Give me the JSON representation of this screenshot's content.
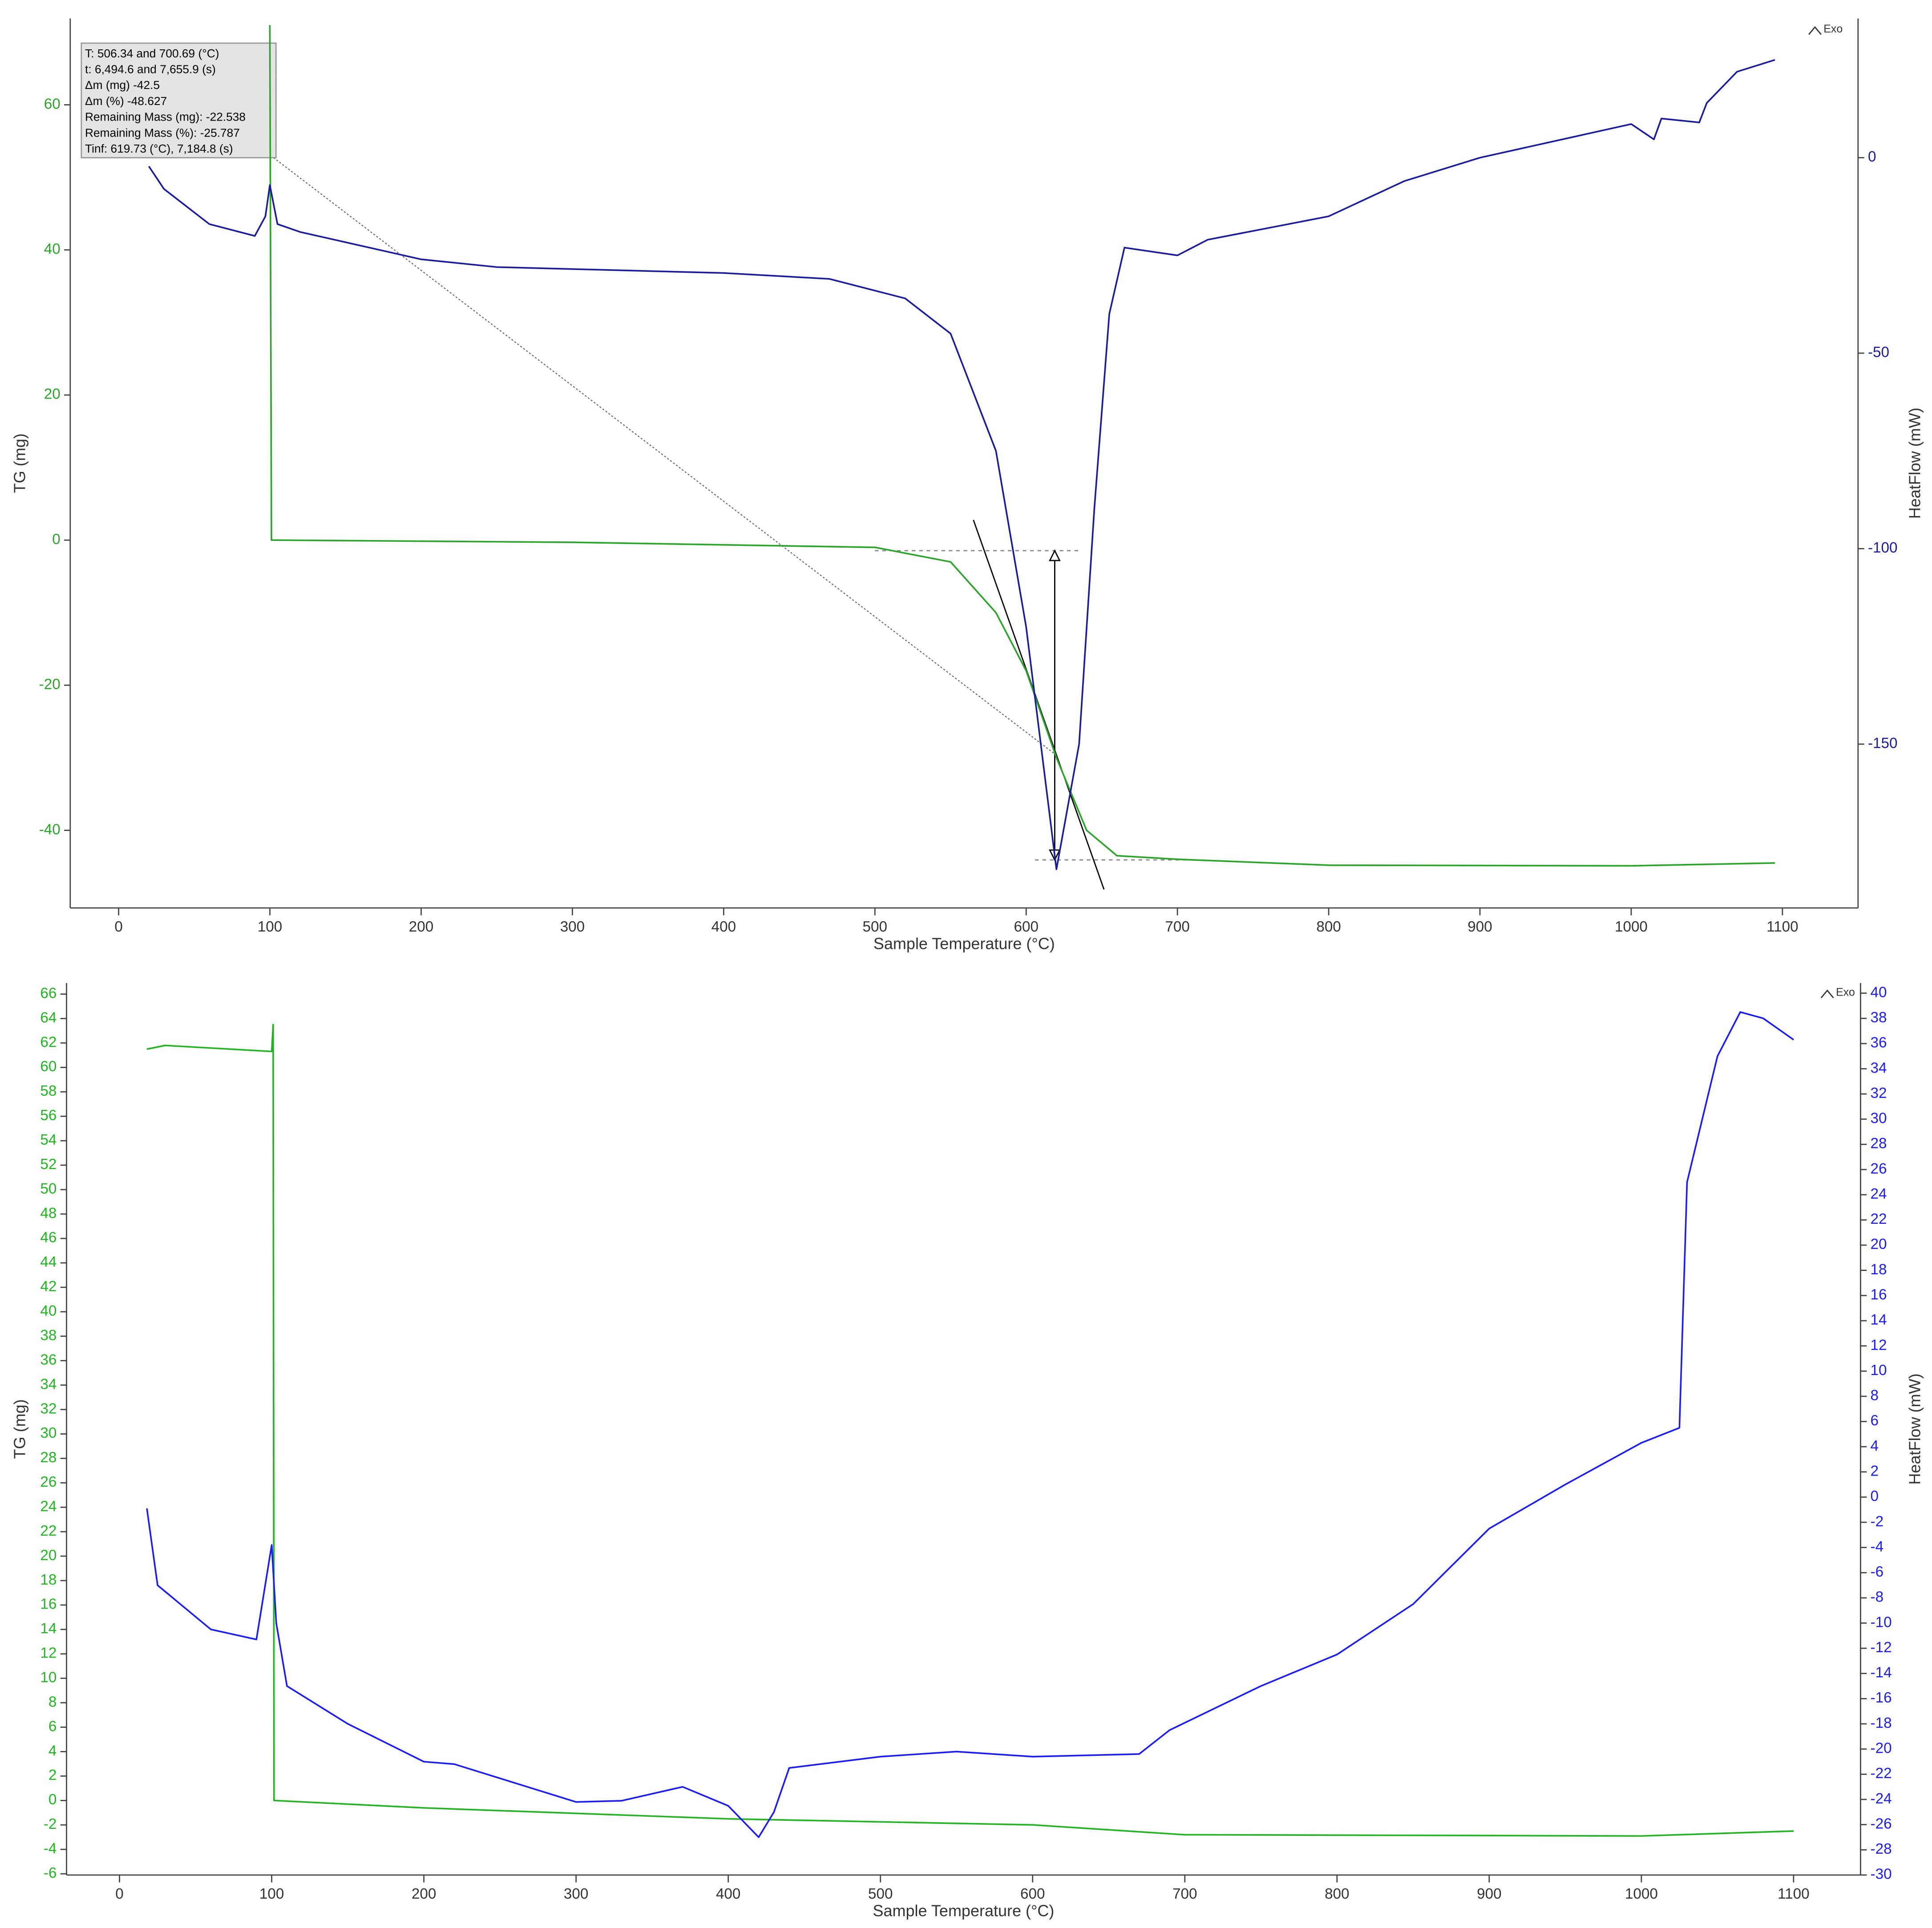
{
  "chart_data": [
    {
      "type": "line",
      "x_label": "Sample Temperature (°C)",
      "y_label": "TG (mg)",
      "y2_label": "HeatFlow (mW)",
      "marker_label": "Exo",
      "annotation": [
        "T: 506.34 and 700.69 (°C)",
        "t: 6,494.6 and 7,655.9 (s)",
        "Δm (mg) -42.5",
        "Δm (%) -48.627",
        "Remaining Mass (mg): -22.538",
        "Remaining Mass (%): -25.787",
        "Tinf: 619.73 (°C), 7,184.8 (s)"
      ],
      "xlim": [
        -32,
        1150
      ],
      "xticks": [
        0,
        100,
        200,
        300,
        400,
        500,
        600,
        700,
        800,
        900,
        1000,
        1100
      ],
      "ylim": [
        -50.7,
        71.9
      ],
      "yticks": [
        -40,
        -20,
        0,
        20,
        40,
        60
      ],
      "y2lim": [
        -191.9,
        35.6
      ],
      "y2ticks": [
        -150,
        -100,
        -50,
        0
      ],
      "y_color": "#2aa52a",
      "y2_color": "#1a1a9e",
      "series": [
        {
          "color": "#2aa52a",
          "x": [
            100,
            101,
            300,
            500,
            550,
            580,
            600,
            620,
            640,
            660,
            700,
            800,
            1000,
            1095
          ],
          "values": [
            71,
            0,
            -0.3,
            -1,
            -3,
            -10,
            -18,
            -30,
            -40,
            -43.5,
            -44,
            -44.8,
            -44.9,
            -44.5
          ]
        },
        {
          "color": "#1a1a9e",
          "axis": "y2",
          "x": [
            20,
            30,
            60,
            90,
            97,
            100,
            105,
            120,
            200,
            250,
            400,
            470,
            520,
            550,
            580,
            600,
            620,
            635,
            645,
            655,
            665,
            700,
            720,
            800,
            850,
            900,
            1000,
            1015,
            1020,
            1045,
            1050,
            1070,
            1095
          ],
          "values": [
            -2.2,
            -8,
            -17,
            -20,
            -15,
            -7,
            -17,
            -19,
            -26,
            -28,
            -29.5,
            -31,
            -36,
            -45,
            -75,
            -120,
            -182,
            -150,
            -90,
            -40,
            -23,
            -25,
            -21,
            -15,
            -6,
            0,
            8.6,
            4.7,
            10,
            9,
            14,
            22,
            25
          ]
        }
      ]
    },
    {
      "type": "line",
      "x_label": "Sample Temperature (°C)",
      "y_label": "TG (mg)",
      "y2_label": "HeatFlow (mW)",
      "marker_label": "Exo",
      "xlim": [
        -34.8,
        1144
      ],
      "xticks": [
        0,
        100,
        200,
        300,
        400,
        500,
        600,
        700,
        800,
        900,
        1000,
        1100
      ],
      "ylim": [
        -6.1,
        66.9
      ],
      "yticks": [
        -6,
        -4,
        -2,
        0,
        2,
        4,
        6,
        8,
        10,
        12,
        14,
        16,
        18,
        20,
        22,
        24,
        26,
        28,
        30,
        32,
        34,
        36,
        38,
        40,
        42,
        44,
        46,
        48,
        50,
        52,
        54,
        56,
        58,
        60,
        62,
        64,
        66
      ],
      "y2lim": [
        -30,
        40.8
      ],
      "y2ticks": [
        -30,
        -28,
        -26,
        -24,
        -22,
        -20,
        -18,
        -16,
        -14,
        -12,
        -10,
        -8,
        -6,
        -4,
        -2,
        0,
        2,
        4,
        6,
        8,
        10,
        12,
        14,
        16,
        18,
        20,
        22,
        24,
        26,
        28,
        30,
        32,
        34,
        36,
        38,
        40
      ],
      "y_color": "#22b422",
      "y2_color": "#1a1aff",
      "series": [
        {
          "color": "#22b422",
          "x": [
            18,
            30,
            100,
            101,
            101.5,
            200,
            400,
            600,
            700,
            1000,
            1100
          ],
          "values": [
            61.5,
            61.8,
            61.3,
            63.5,
            0,
            -0.6,
            -1.5,
            -2,
            -2.8,
            -2.9,
            -2.5
          ]
        },
        {
          "color": "#1a1aff",
          "axis": "y2",
          "x": [
            18,
            25,
            60,
            90,
            100,
            103,
            110,
            150,
            200,
            220,
            300,
            330,
            370,
            400,
            420,
            430,
            440,
            500,
            550,
            600,
            670,
            690,
            750,
            800,
            850,
            900,
            950,
            1000,
            1025,
            1030,
            1050,
            1065,
            1080,
            1100
          ],
          "values": [
            -0.9,
            -7,
            -10.5,
            -11.3,
            -3.8,
            -10,
            -15,
            -18,
            -21,
            -21.2,
            -24.2,
            -24.1,
            -23,
            -24.5,
            -27,
            -25,
            -21.5,
            -20.6,
            -20.2,
            -20.6,
            -20.4,
            -18.5,
            -15,
            -12.5,
            -8.5,
            -2.5,
            1,
            4.3,
            5.5,
            25,
            35,
            38.5,
            38,
            36.3
          ]
        }
      ]
    }
  ]
}
